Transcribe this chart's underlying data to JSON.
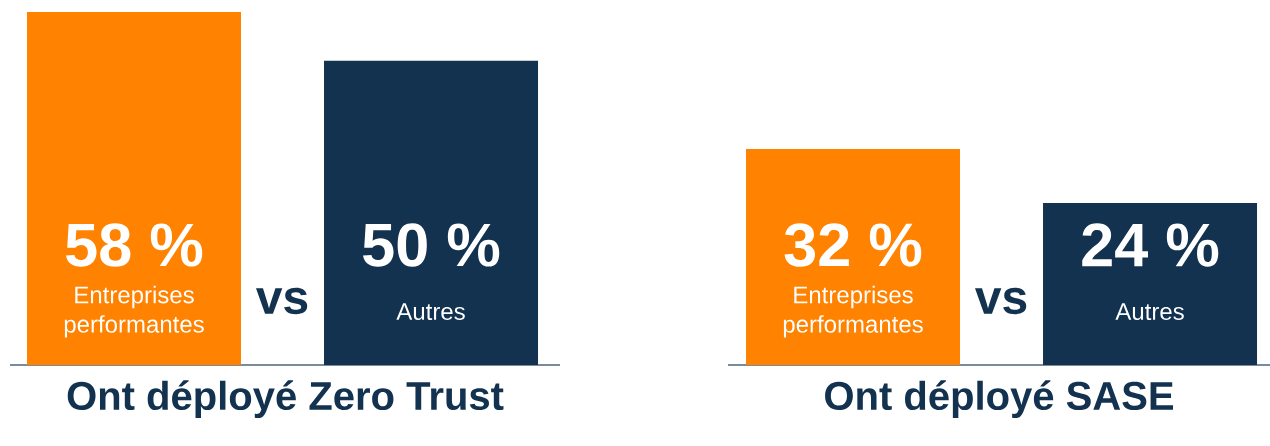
{
  "chart_data": [
    {
      "type": "bar",
      "title": "Ont déployé Zero Trust",
      "categories": [
        "Entreprises performantes",
        "Autres"
      ],
      "annotations": [
        "vs"
      ],
      "series": [
        {
          "colors": [
            "#ff8200",
            "#12324f"
          ],
          "values": [
            58,
            50
          ],
          "value_labels": [
            "58 %",
            "50 %"
          ]
        }
      ]
    },
    {
      "type": "bar",
      "title": "Ont déployé SASE",
      "categories": [
        "Entreprises performantes",
        "Autres"
      ],
      "annotations": [
        "vs"
      ],
      "series": [
        {
          "colors": [
            "#ff8200",
            "#12324f"
          ],
          "values": [
            32,
            24
          ],
          "value_labels": [
            "32 %",
            "24 %"
          ]
        }
      ]
    }
  ]
}
